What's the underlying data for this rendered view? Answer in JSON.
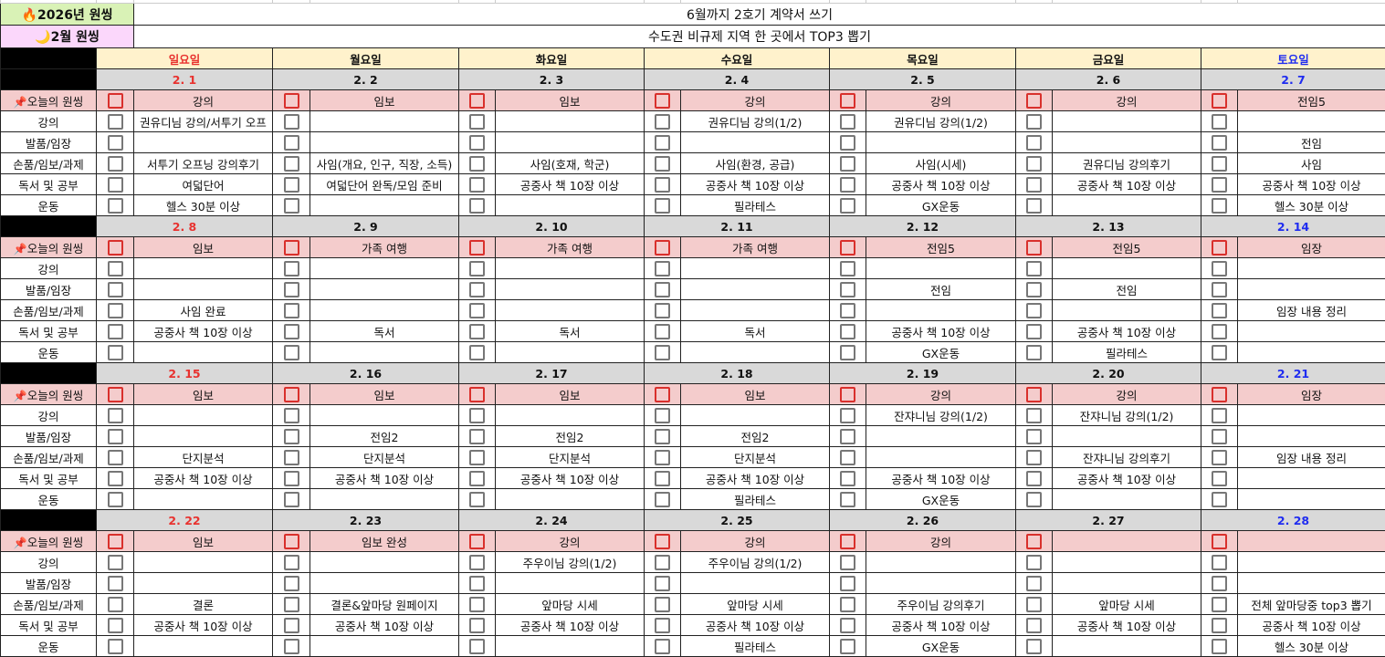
{
  "header": {
    "year_goal_label": "2026년 원씽",
    "year_goal_icon": "fire-icon",
    "year_goal": "6월까지 2호기 계약서 쓰기",
    "month_goal_label": "2월 원씽",
    "month_goal_icon": "crescent-moon-icon",
    "month_goal": "수도권 비규제 지역 한 곳에서 TOP3 뽑기"
  },
  "weekdays": [
    "일요일",
    "월요일",
    "화요일",
    "수요일",
    "목요일",
    "금요일",
    "토요일"
  ],
  "colors": {
    "sunday": "#e8322f",
    "saturday": "#1f2cf0",
    "goal_row": "#f4cccc",
    "weekday_row": "#fff2cc",
    "date_row": "#d9d9d9",
    "year_label": "#d9f2b6",
    "month_label": "#fbd7fb"
  },
  "goal_label": "오늘의 원씽",
  "goal_icon": "pushpin-icon",
  "categories": [
    "강의",
    "발품/임장",
    "손품/임보/과제",
    "독서 및 공부",
    "운동"
  ],
  "weeks": [
    {
      "dates": [
        "2. 1",
        "2. 2",
        "2. 3",
        "2. 4",
        "2. 5",
        "2. 6",
        "2. 7"
      ],
      "goals": [
        "강의",
        "임보",
        "임보",
        "강의",
        "강의",
        "강의",
        "전임5"
      ],
      "rows": [
        [
          "권유디님 강의/서투기 오프",
          "",
          "",
          "권유디님 강의(1/2)",
          "권유디님 강의(1/2)",
          "",
          ""
        ],
        [
          "",
          "",
          "",
          "",
          "",
          "",
          "전임"
        ],
        [
          "서투기 오프닝 강의후기",
          "사임(개요, 인구, 직장, 소득)",
          "사임(호재, 학군)",
          "사임(환경, 공급)",
          "사임(시세)",
          "권유디님 강의후기",
          "사임"
        ],
        [
          "여덟단어",
          "여덟단어 완독/모임 준비",
          "공중사 책 10장 이상",
          "공중사 책 10장 이상",
          "공중사 책 10장 이상",
          "공중사 책 10장 이상",
          "공중사 책 10장 이상"
        ],
        [
          "헬스 30분 이상",
          "",
          "",
          "필라테스",
          "GX운동",
          "",
          "헬스 30분 이상"
        ]
      ]
    },
    {
      "dates": [
        "2. 8",
        "2. 9",
        "2. 10",
        "2. 11",
        "2. 12",
        "2. 13",
        "2. 14"
      ],
      "goals": [
        "임보",
        "가족 여행",
        "가족 여행",
        "가족 여행",
        "전임5",
        "전임5",
        "임장"
      ],
      "rows": [
        [
          "",
          "",
          "",
          "",
          "",
          "",
          ""
        ],
        [
          "",
          "",
          "",
          "",
          "전임",
          "전임",
          ""
        ],
        [
          "사임 완료",
          "",
          "",
          "",
          "",
          "",
          "임장 내용 정리"
        ],
        [
          "공중사 책 10장 이상",
          "독서",
          "독서",
          "독서",
          "공중사 책 10장 이상",
          "공중사 책 10장 이상",
          ""
        ],
        [
          "",
          "",
          "",
          "",
          "GX운동",
          "필라테스",
          ""
        ]
      ]
    },
    {
      "dates": [
        "2. 15",
        "2. 16",
        "2. 17",
        "2. 18",
        "2. 19",
        "2. 20",
        "2. 21"
      ],
      "goals": [
        "임보",
        "임보",
        "임보",
        "임보",
        "강의",
        "강의",
        "임장"
      ],
      "rows": [
        [
          "",
          "",
          "",
          "",
          "잔쟈니님 강의(1/2)",
          "잔쟈니님 강의(1/2)",
          ""
        ],
        [
          "",
          "전임2",
          "전임2",
          "전임2",
          "",
          "",
          ""
        ],
        [
          "단지분석",
          "단지분석",
          "단지분석",
          "단지분석",
          "",
          "잔쟈니님 강의후기",
          "임장 내용 정리"
        ],
        [
          "공중사 책 10장 이상",
          "공중사 책 10장 이상",
          "공중사 책 10장 이상",
          "공중사 책 10장 이상",
          "공중사 책 10장 이상",
          "공중사 책 10장 이상",
          ""
        ],
        [
          "",
          "",
          "",
          "필라테스",
          "GX운동",
          "",
          ""
        ]
      ]
    },
    {
      "dates": [
        "2. 22",
        "2. 23",
        "2. 24",
        "2. 25",
        "2. 26",
        "2. 27",
        "2. 28"
      ],
      "goals": [
        "임보",
        "임보 완성",
        "강의",
        "강의",
        "강의",
        "",
        ""
      ],
      "rows": [
        [
          "",
          "",
          "주우이님 강의(1/2)",
          "주우이님 강의(1/2)",
          "",
          "",
          ""
        ],
        [
          "",
          "",
          "",
          "",
          "",
          "",
          ""
        ],
        [
          "결론",
          "결론&앞마당 원페이지",
          "앞마당 시세",
          "앞마당 시세",
          "주우이님 강의후기",
          "앞마당 시세",
          "전체 앞마당중 top3 뽑기"
        ],
        [
          "공중사 책 10장 이상",
          "공중사 책 10장 이상",
          "공중사 책 10장 이상",
          "공중사 책 10장 이상",
          "공중사 책 10장 이상",
          "공중사 책 10장 이상",
          "공중사 책 10장 이상"
        ],
        [
          "",
          "",
          "",
          "필라테스",
          "GX운동",
          "",
          "헬스 30분 이상"
        ]
      ]
    }
  ]
}
